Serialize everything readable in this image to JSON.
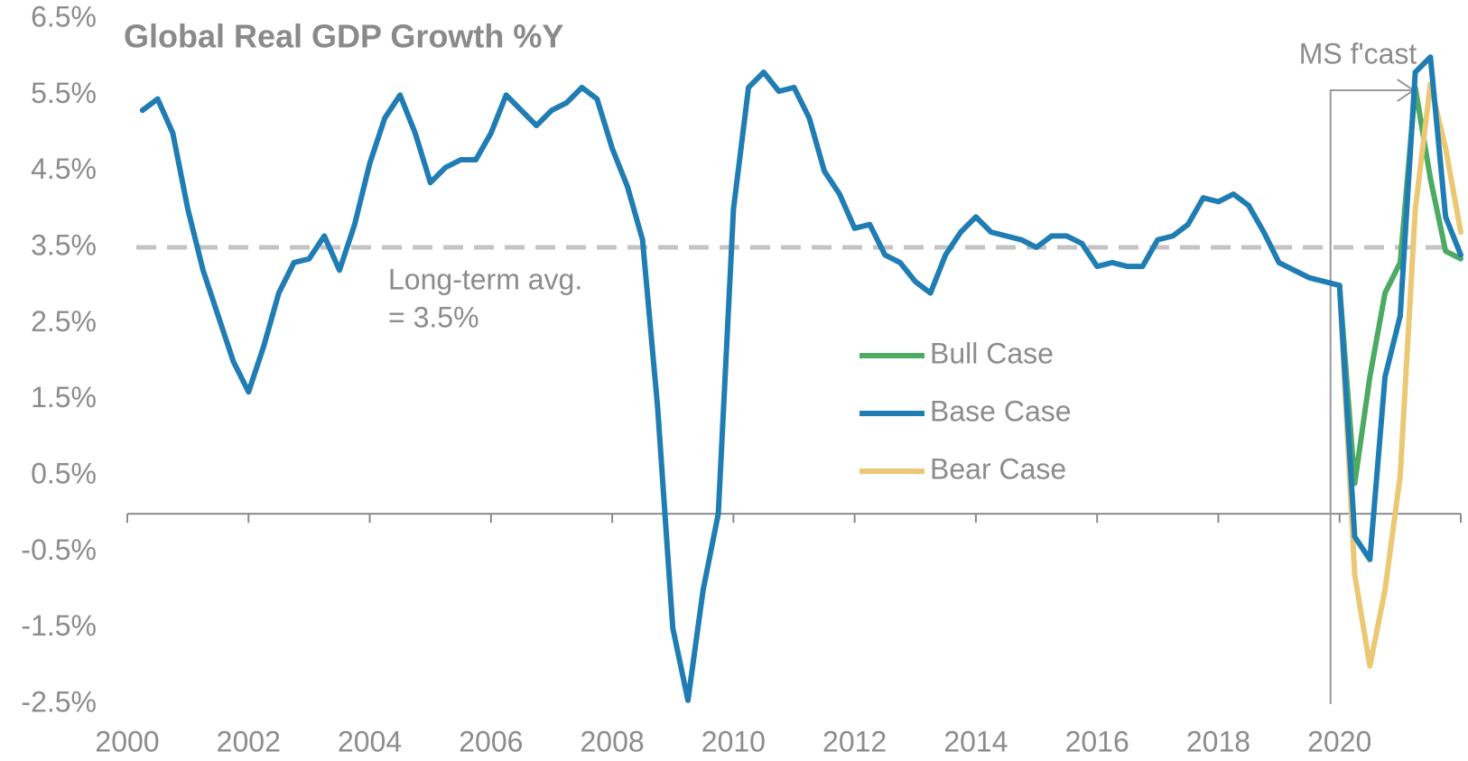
{
  "chart_data": {
    "type": "line",
    "title": "Global Real GDP Growth %Y",
    "xlim": [
      2000,
      2022
    ],
    "xticks": [
      2000,
      2002,
      2004,
      2006,
      2008,
      2010,
      2012,
      2014,
      2016,
      2018,
      2020
    ],
    "ylim": [
      -2.5,
      6.5
    ],
    "yticks": [
      {
        "value": -2.5,
        "label": "-2.5%"
      },
      {
        "value": -1.5,
        "label": "-1.5%"
      },
      {
        "value": -0.5,
        "label": "-0.5%"
      },
      {
        "value": 0.5,
        "label": "0.5%"
      },
      {
        "value": 1.5,
        "label": "1.5%"
      },
      {
        "value": 2.5,
        "label": "2.5%"
      },
      {
        "value": 3.5,
        "label": "3.5%"
      },
      {
        "value": 4.5,
        "label": "4.5%"
      },
      {
        "value": 5.5,
        "label": "5.5%"
      },
      {
        "value": 6.5,
        "label": "6.5%"
      }
    ],
    "grid": false,
    "legend": "center",
    "long_term_avg": 3.5,
    "long_term_avg_label": [
      "Long-term avg.",
      "= 3.5%"
    ],
    "forecast_start": 2020,
    "forecast_label": "MS f'cast",
    "series": [
      {
        "name": "Bull Case",
        "color": "#4caa62",
        "x": [
          2020,
          2020.25,
          2020.5,
          2020.75,
          2021,
          2021.25,
          2021.5,
          2021.75,
          2022
        ],
        "values": [
          3.0,
          0.4,
          1.8,
          2.9,
          3.3,
          5.6,
          4.4,
          3.45,
          3.35
        ]
      },
      {
        "name": "Base Case",
        "color": "#1f7db4",
        "x": [
          2000.25,
          2000.5,
          2000.75,
          2001,
          2001.25,
          2001.5,
          2001.75,
          2002,
          2002.25,
          2002.5,
          2002.75,
          2003,
          2003.25,
          2003.5,
          2003.75,
          2004,
          2004.25,
          2004.5,
          2004.75,
          2005,
          2005.25,
          2005.5,
          2005.75,
          2006,
          2006.25,
          2006.5,
          2006.75,
          2007,
          2007.25,
          2007.5,
          2007.75,
          2008,
          2008.25,
          2008.5,
          2008.75,
          2009,
          2009.25,
          2009.5,
          2009.75,
          2010,
          2010.25,
          2010.5,
          2010.75,
          2011,
          2011.25,
          2011.5,
          2011.75,
          2012,
          2012.25,
          2012.5,
          2012.75,
          2013,
          2013.25,
          2013.5,
          2013.75,
          2014,
          2014.25,
          2014.5,
          2014.75,
          2015,
          2015.25,
          2015.5,
          2015.75,
          2016,
          2016.25,
          2016.5,
          2016.75,
          2017,
          2017.25,
          2017.5,
          2017.75,
          2018,
          2018.25,
          2018.5,
          2018.75,
          2019,
          2019.25,
          2019.5,
          2019.75,
          2020,
          2020.25,
          2020.5,
          2020.75,
          2021,
          2021.25,
          2021.5,
          2021.75,
          2022
        ],
        "values": [
          5.3,
          5.45,
          5.0,
          4.0,
          3.2,
          2.6,
          2.0,
          1.6,
          2.2,
          2.9,
          3.3,
          3.35,
          3.65,
          3.2,
          3.8,
          4.6,
          5.2,
          5.5,
          5.0,
          4.35,
          4.55,
          4.65,
          4.65,
          5.0,
          5.5,
          5.3,
          5.1,
          5.3,
          5.4,
          5.6,
          5.45,
          4.8,
          4.3,
          3.6,
          1.4,
          -1.5,
          -2.45,
          -1.0,
          0.0,
          4.0,
          5.6,
          5.8,
          5.55,
          5.6,
          5.2,
          4.5,
          4.2,
          3.75,
          3.8,
          3.4,
          3.3,
          3.05,
          2.9,
          3.4,
          3.7,
          3.9,
          3.7,
          3.65,
          3.6,
          3.5,
          3.65,
          3.65,
          3.55,
          3.25,
          3.3,
          3.25,
          3.25,
          3.6,
          3.65,
          3.8,
          4.15,
          4.1,
          4.2,
          4.05,
          3.7,
          3.3,
          3.2,
          3.1,
          3.05,
          3.0,
          -0.3,
          -0.6,
          1.8,
          2.6,
          5.8,
          6.0,
          3.9,
          3.4
        ]
      },
      {
        "name": "Bear Case",
        "color": "#ebc873",
        "x": [
          2020,
          2020.25,
          2020.5,
          2020.75,
          2021,
          2021.25,
          2021.5,
          2021.75,
          2022
        ],
        "values": [
          3.0,
          -0.8,
          -2.0,
          -1.0,
          0.5,
          4.0,
          5.65,
          4.8,
          3.7
        ]
      }
    ]
  }
}
